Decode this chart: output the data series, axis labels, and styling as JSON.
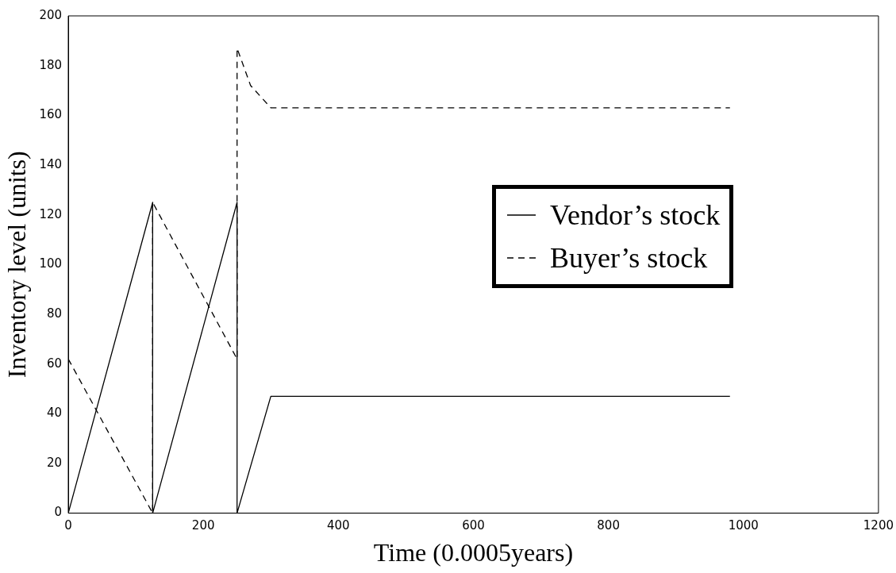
{
  "chart_data": {
    "type": "line",
    "xlabel": "Time (0.0005years)",
    "ylabel": "Inventory level (units)",
    "xlim": [
      0,
      1200
    ],
    "xticks": [
      0,
      200,
      400,
      600,
      800,
      1000,
      1200
    ],
    "ylim": [
      0,
      200
    ],
    "yticks": [
      0,
      20,
      40,
      60,
      80,
      100,
      120,
      140,
      160,
      180,
      200
    ],
    "grid": false,
    "legend": "right",
    "marker": "none",
    "series": [
      {
        "name": "Vendor’s stock",
        "color": "#000000",
        "line_style": "solid",
        "x": [
          0,
          125,
          125,
          250,
          250,
          300,
          980
        ],
        "values": [
          0,
          125,
          0,
          125,
          0,
          47,
          47
        ]
      },
      {
        "name": "Buyer’s stock",
        "color": "#000000",
        "line_style": "dashed",
        "x": [
          0,
          125,
          125,
          250,
          250,
          270,
          300,
          980
        ],
        "values": [
          62,
          0,
          125,
          62,
          187,
          172,
          163,
          163
        ]
      }
    ]
  }
}
